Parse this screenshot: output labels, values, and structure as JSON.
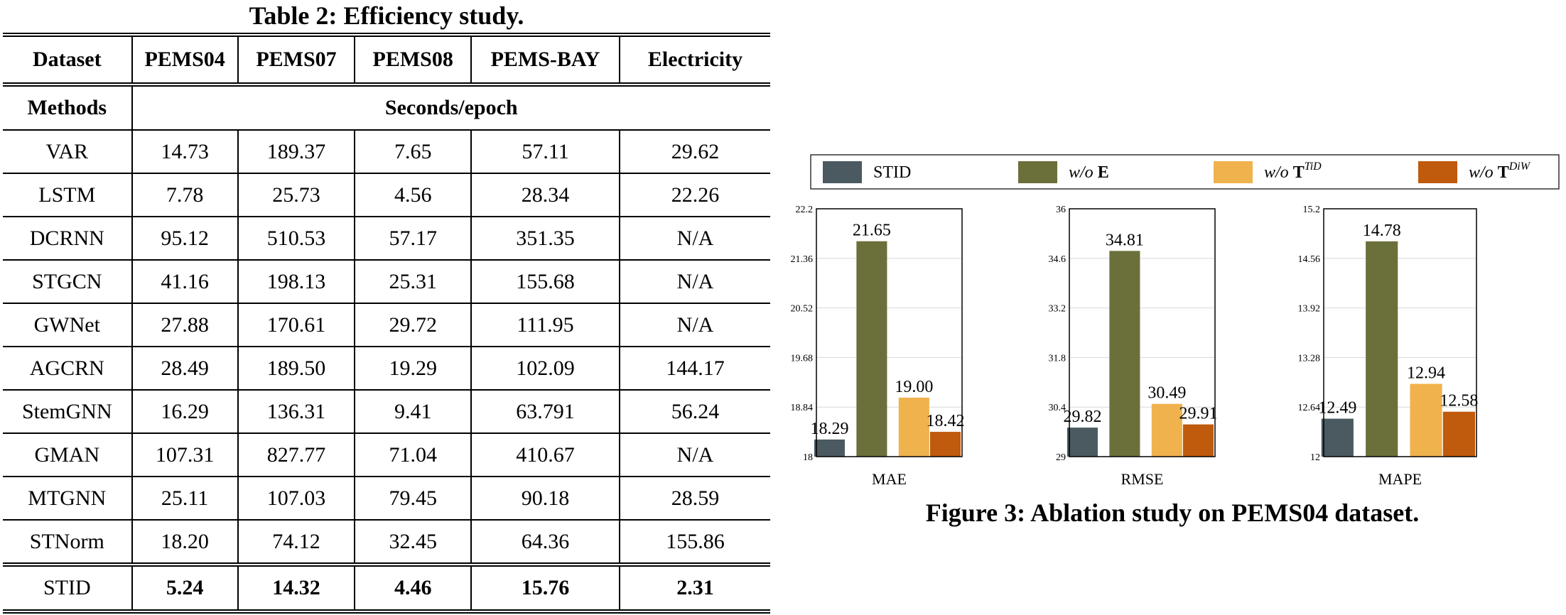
{
  "table": {
    "caption": "Table 2: Efficiency study.",
    "header": [
      "Dataset",
      "PEMS04",
      "PEMS07",
      "PEMS08",
      "PEMS-BAY",
      "Electricity"
    ],
    "subheader": {
      "left": "Methods",
      "span": "Seconds/epoch"
    },
    "rows": [
      [
        "VAR",
        "14.73",
        "189.37",
        "7.65",
        "57.11",
        "29.62"
      ],
      [
        "LSTM",
        "7.78",
        "25.73",
        "4.56",
        "28.34",
        "22.26"
      ],
      [
        "DCRNN",
        "95.12",
        "510.53",
        "57.17",
        "351.35",
        "N/A"
      ],
      [
        "STGCN",
        "41.16",
        "198.13",
        "25.31",
        "155.68",
        "N/A"
      ],
      [
        "GWNet",
        "27.88",
        "170.61",
        "29.72",
        "111.95",
        "N/A"
      ],
      [
        "AGCRN",
        "28.49",
        "189.50",
        "19.29",
        "102.09",
        "144.17"
      ],
      [
        "StemGNN",
        "16.29",
        "136.31",
        "9.41",
        "63.791",
        "56.24"
      ],
      [
        "GMAN",
        "107.31",
        "827.77",
        "71.04",
        "410.67",
        "N/A"
      ],
      [
        "MTGNN",
        "25.11",
        "107.03",
        "79.45",
        "90.18",
        "28.59"
      ],
      [
        "STNorm",
        "18.20",
        "74.12",
        "32.45",
        "64.36",
        "155.86"
      ]
    ],
    "stid_row": [
      "STID",
      "5.24",
      "14.32",
      "4.46",
      "15.76",
      "2.31"
    ]
  },
  "figure": {
    "caption": "Figure 3: Ablation study on PEMS04 dataset.",
    "legend": [
      {
        "prefix": "STID",
        "bold": "",
        "sup": "",
        "color": "#4a5a60"
      },
      {
        "prefix": "w/o",
        "bold": "E",
        "sup": "",
        "color": "#6b6f3a"
      },
      {
        "prefix": "w/o",
        "bold": "T",
        "sup": "TiD",
        "color": "#f0b24d"
      },
      {
        "prefix": "w/o",
        "bold": "T",
        "sup": "DiW",
        "color": "#c05a0d"
      }
    ]
  },
  "chart_data": [
    {
      "type": "bar",
      "xlabel": "MAE",
      "categories": [
        "STID",
        "w/o E",
        "w/o T^TiD",
        "w/o T^DiW"
      ],
      "values": [
        18.29,
        21.65,
        19.0,
        18.42
      ],
      "value_labels": [
        "18.29",
        "21.65",
        "19.00",
        "18.42"
      ],
      "ylim": [
        18,
        22.2
      ],
      "yticks": [
        "18",
        "18.84",
        "19.68",
        "20.52",
        "21.36",
        "22.2"
      ]
    },
    {
      "type": "bar",
      "xlabel": "RMSE",
      "categories": [
        "STID",
        "w/o E",
        "w/o T^TiD",
        "w/o T^DiW"
      ],
      "values": [
        29.82,
        34.81,
        30.49,
        29.91
      ],
      "value_labels": [
        "29.82",
        "34.81",
        "30.49",
        "29.91"
      ],
      "ylim": [
        29,
        36
      ],
      "yticks": [
        "29",
        "30.4",
        "31.8",
        "33.2",
        "34.6",
        "36"
      ]
    },
    {
      "type": "bar",
      "xlabel": "MAPE",
      "categories": [
        "STID",
        "w/o E",
        "w/o T^TiD",
        "w/o T^DiW"
      ],
      "values": [
        12.49,
        14.78,
        12.94,
        12.58
      ],
      "value_labels": [
        "12.49",
        "14.78",
        "12.94",
        "12.58"
      ],
      "ylim": [
        12,
        15.2
      ],
      "yticks": [
        "12",
        "12.64",
        "13.28",
        "13.92",
        "14.56",
        "15.2"
      ]
    }
  ]
}
